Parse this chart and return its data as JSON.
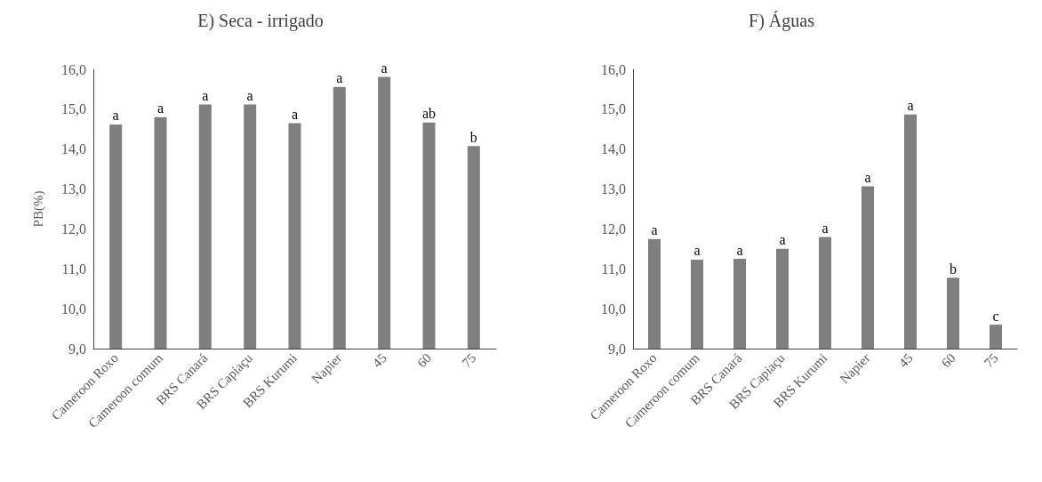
{
  "chart_data": [
    {
      "type": "bar",
      "title": "E) Seca - irrigado",
      "ylabel": "PB(%)",
      "categories": [
        "Cameroon Roxo",
        "Cameroon comum",
        "BRS Canará",
        "BRS Capiaçu",
        "BRS Kurumi",
        "Napier",
        "45",
        "60",
        "75"
      ],
      "values": [
        14.62,
        14.8,
        15.12,
        15.12,
        14.65,
        15.56,
        15.81,
        14.67,
        14.08
      ],
      "value_labels": [
        "a",
        "a",
        "a",
        "a",
        "a",
        "a",
        "a",
        "ab",
        "b"
      ],
      "color": "#7f7f7f",
      "ylim": [
        9,
        16
      ],
      "yticks": [
        {
          "value": 9,
          "label": "9,0"
        },
        {
          "value": 10,
          "label": "10,0"
        },
        {
          "value": 11,
          "label": "11,0"
        },
        {
          "value": 12,
          "label": "12,0"
        },
        {
          "value": 13,
          "label": "13,0"
        },
        {
          "value": 14,
          "label": "14,0"
        },
        {
          "value": 15,
          "label": "15,0"
        },
        {
          "value": 16,
          "label": "16,0"
        }
      ],
      "grid": false
    },
    {
      "type": "bar",
      "title": "F) Águas",
      "categories": [
        "Cameroon Roxo",
        "Cameroon comum",
        "BRS Canará",
        "BRS Capiaçu",
        "BRS Kurumi",
        "Napier",
        "45",
        "60",
        "75"
      ],
      "values": [
        11.75,
        11.23,
        11.25,
        11.5,
        11.8,
        13.07,
        14.87,
        10.78,
        9.6
      ],
      "value_labels": [
        "a",
        "a",
        "a",
        "a",
        "a",
        "a",
        "a",
        "b",
        "c"
      ],
      "color": "#7f7f7f",
      "ylim": [
        9,
        16
      ],
      "yticks": [
        {
          "value": 9,
          "label": "9,0"
        },
        {
          "value": 10,
          "label": "10,0"
        },
        {
          "value": 11,
          "label": "11,0"
        },
        {
          "value": 12,
          "label": "12,0"
        },
        {
          "value": 13,
          "label": "13,0"
        },
        {
          "value": 14,
          "label": "14,0"
        },
        {
          "value": 15,
          "label": "15,0"
        },
        {
          "value": 16,
          "label": "16,0"
        }
      ],
      "grid": false
    }
  ]
}
